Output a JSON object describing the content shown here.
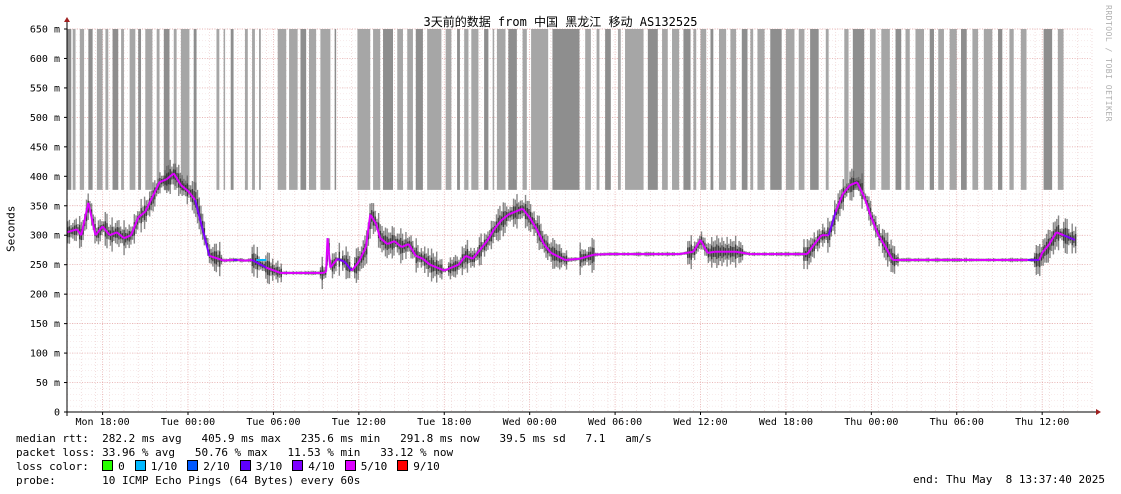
{
  "title": "3天前的数据 from 中国 黑龙江 移动 AS132525",
  "watermark": "RRDTOOL / TOBI OETIKER",
  "stats": {
    "rtt_label": "median rtt:",
    "rtt_values": "282.2 ms avg   405.9 ms max   235.6 ms min   291.8 ms now   39.5 ms sd   7.1   am/s",
    "loss_label": "packet loss:",
    "loss_values": "33.96 % avg   50.76 % max   11.53 % min   33.12 % now",
    "color_label": "loss color:",
    "probe_label": "probe:",
    "probe_value": "10 ICMP Echo Pings (64 Bytes) every 60s",
    "end": "end: Thu May  8 13:37:40 2025"
  },
  "loss_colors": [
    {
      "label": "0",
      "color": "#26ff00"
    },
    {
      "label": "1/10",
      "color": "#00b8ff"
    },
    {
      "label": "2/10",
      "color": "#0059ff"
    },
    {
      "label": "3/10",
      "color": "#5e00ff"
    },
    {
      "label": "4/10",
      "color": "#7e00ff"
    },
    {
      "label": "5/10",
      "color": "#dd00ff"
    },
    {
      "label": "9/10",
      "color": "#ff0000"
    }
  ],
  "chart_data": {
    "type": "line",
    "title": "3天前的数据 from 中国 黑龙江 移动 AS132525",
    "ylabel": "Seconds",
    "ylim": [
      0,
      0.65
    ],
    "y_ticks": [
      {
        "v": 0,
        "label": "0"
      },
      {
        "v": 0.05,
        "label": "50 m"
      },
      {
        "v": 0.1,
        "label": "100 m"
      },
      {
        "v": 0.15,
        "label": "150 m"
      },
      {
        "v": 0.2,
        "label": "200 m"
      },
      {
        "v": 0.25,
        "label": "250 m"
      },
      {
        "v": 0.3,
        "label": "300 m"
      },
      {
        "v": 0.35,
        "label": "350 m"
      },
      {
        "v": 0.4,
        "label": "400 m"
      },
      {
        "v": 0.45,
        "label": "450 m"
      },
      {
        "v": 0.5,
        "label": "500 m"
      },
      {
        "v": 0.55,
        "label": "550 m"
      },
      {
        "v": 0.6,
        "label": "600 m"
      },
      {
        "v": 0.65,
        "label": "650 m"
      }
    ],
    "xlim": [
      0,
      72
    ],
    "x_ticks": [
      {
        "v": 2.5,
        "label": "Mon 18:00"
      },
      {
        "v": 8.5,
        "label": "Tue 00:00"
      },
      {
        "v": 14.5,
        "label": "Tue 06:00"
      },
      {
        "v": 20.5,
        "label": "Tue 12:00"
      },
      {
        "v": 26.5,
        "label": "Tue 18:00"
      },
      {
        "v": 32.5,
        "label": "Wed 00:00"
      },
      {
        "v": 38.5,
        "label": "Wed 06:00"
      },
      {
        "v": 44.5,
        "label": "Wed 12:00"
      },
      {
        "v": 50.5,
        "label": "Wed 18:00"
      },
      {
        "v": 56.5,
        "label": "Thu 00:00"
      },
      {
        "v": 62.5,
        "label": "Thu 06:00"
      },
      {
        "v": 68.5,
        "label": "Thu 12:00"
      }
    ],
    "median_rtt": {
      "x": [
        0,
        0.7,
        1.0,
        1.5,
        2.0,
        2.5,
        3.0,
        3.5,
        4.0,
        4.5,
        5.0,
        5.5,
        6.0,
        6.5,
        7.0,
        7.5,
        8.0,
        8.5,
        9.0,
        10.0,
        11.0,
        11.5,
        11.7,
        12.0,
        12.5,
        13.0,
        14.0,
        15.0,
        16.0,
        17.0,
        18.0,
        18.2,
        18.3,
        18.5,
        19.0,
        19.5,
        20.0,
        20.5,
        21.0,
        21.3,
        21.7,
        22.0,
        22.5,
        23.0,
        23.5,
        24.0,
        24.5,
        25.0,
        25.5,
        26.0,
        26.5,
        27.0,
        27.5,
        28.0,
        28.5,
        29.0,
        29.5,
        30.0,
        30.5,
        31.0,
        31.5,
        32.0,
        32.5,
        33.0,
        33.5,
        34.0,
        35.0,
        36.0,
        37.0,
        38.0,
        39.0,
        40.0,
        41.0,
        42.0,
        43.0,
        44.0,
        44.5,
        45.0,
        45.5,
        46.0,
        47.0,
        48.0,
        49.0,
        50.0,
        51.0,
        52.0,
        52.5,
        53.0,
        53.5,
        54.0,
        54.5,
        55.0,
        55.5,
        56.0,
        56.5,
        57.0,
        57.5,
        58.0,
        59.0,
        60.0,
        61.0,
        62.0,
        63.0,
        64.0,
        65.0,
        66.0,
        67.0,
        67.5,
        68.0,
        68.3,
        68.5,
        69.0,
        69.5,
        70.0,
        70.5,
        70.8
      ],
      "values": [
        0.305,
        0.31,
        0.3,
        0.355,
        0.3,
        0.315,
        0.3,
        0.305,
        0.295,
        0.3,
        0.33,
        0.34,
        0.365,
        0.39,
        0.395,
        0.405,
        0.385,
        0.375,
        0.36,
        0.265,
        0.257,
        0.258,
        0.258,
        0.258,
        0.257,
        0.258,
        0.245,
        0.236,
        0.236,
        0.236,
        0.236,
        0.238,
        0.295,
        0.245,
        0.26,
        0.255,
        0.24,
        0.255,
        0.28,
        0.335,
        0.32,
        0.295,
        0.285,
        0.29,
        0.28,
        0.285,
        0.265,
        0.26,
        0.25,
        0.245,
        0.24,
        0.245,
        0.25,
        0.265,
        0.26,
        0.275,
        0.29,
        0.31,
        0.325,
        0.335,
        0.34,
        0.345,
        0.33,
        0.31,
        0.285,
        0.27,
        0.258,
        0.26,
        0.267,
        0.268,
        0.268,
        0.268,
        0.268,
        0.268,
        0.268,
        0.272,
        0.292,
        0.27,
        0.272,
        0.272,
        0.272,
        0.268,
        0.268,
        0.268,
        0.268,
        0.268,
        0.285,
        0.3,
        0.3,
        0.34,
        0.37,
        0.385,
        0.39,
        0.365,
        0.33,
        0.3,
        0.28,
        0.258,
        0.258,
        0.258,
        0.258,
        0.258,
        0.258,
        0.258,
        0.258,
        0.258,
        0.258,
        0.258,
        0.258,
        0.258,
        0.27,
        0.285,
        0.305,
        0.3,
        0.295,
        0.292
      ]
    },
    "loss_regions": [
      [
        0.0,
        0.3
      ],
      [
        0.4,
        0.6
      ],
      [
        0.9,
        1.2
      ],
      [
        1.5,
        1.8
      ],
      [
        2.1,
        2.5
      ],
      [
        2.7,
        2.9
      ],
      [
        3.2,
        3.6
      ],
      [
        3.8,
        4.0
      ],
      [
        4.4,
        4.8
      ],
      [
        5.0,
        5.2
      ],
      [
        5.5,
        6.0
      ],
      [
        6.3,
        6.5
      ],
      [
        6.8,
        7.2
      ],
      [
        7.5,
        7.7
      ],
      [
        8.0,
        8.6
      ],
      [
        8.9,
        9.1
      ],
      [
        10.5,
        10.7
      ],
      [
        11.0,
        11.1
      ],
      [
        11.5,
        11.7
      ],
      [
        12.5,
        12.7
      ],
      [
        13.0,
        13.2
      ],
      [
        13.5,
        13.6
      ],
      [
        14.8,
        15.4
      ],
      [
        15.6,
        16.2
      ],
      [
        16.4,
        16.8
      ],
      [
        17.0,
        17.5
      ],
      [
        17.8,
        18.5
      ],
      [
        18.8,
        18.9
      ],
      [
        20.4,
        21.3
      ],
      [
        21.5,
        22.0
      ],
      [
        22.2,
        22.9
      ],
      [
        23.2,
        23.6
      ],
      [
        23.9,
        24.3
      ],
      [
        24.5,
        25.0
      ],
      [
        25.3,
        26.3
      ],
      [
        26.6,
        27.0
      ],
      [
        27.4,
        27.6
      ],
      [
        27.9,
        28.2
      ],
      [
        28.4,
        28.9
      ],
      [
        29.3,
        29.6
      ],
      [
        29.9,
        30.0
      ],
      [
        30.2,
        30.8
      ],
      [
        31.0,
        31.6
      ],
      [
        32.0,
        32.3
      ],
      [
        32.6,
        33.8
      ],
      [
        34.1,
        36.0
      ],
      [
        36.4,
        36.8
      ],
      [
        37.2,
        37.4
      ],
      [
        37.8,
        38.2
      ],
      [
        38.7,
        38.9
      ],
      [
        39.2,
        40.5
      ],
      [
        40.8,
        41.5
      ],
      [
        41.8,
        42.2
      ],
      [
        42.5,
        43.0
      ],
      [
        43.3,
        43.8
      ],
      [
        44.0,
        44.2
      ],
      [
        44.5,
        44.9
      ],
      [
        45.2,
        45.4
      ],
      [
        45.8,
        46.3
      ],
      [
        46.6,
        47.0
      ],
      [
        47.4,
        47.8
      ],
      [
        48.0,
        48.2
      ],
      [
        48.5,
        49.0
      ],
      [
        49.4,
        50.2
      ],
      [
        50.5,
        51.1
      ],
      [
        51.4,
        51.8
      ],
      [
        52.2,
        52.8
      ],
      [
        53.3,
        53.5
      ],
      [
        54.6,
        54.9
      ],
      [
        55.2,
        56.0
      ],
      [
        56.4,
        56.8
      ],
      [
        57.2,
        57.8
      ],
      [
        58.2,
        58.6
      ],
      [
        58.9,
        59.2
      ],
      [
        59.6,
        60.2
      ],
      [
        60.6,
        60.9
      ],
      [
        61.2,
        61.6
      ],
      [
        62.0,
        62.5
      ],
      [
        62.8,
        63.2
      ],
      [
        63.6,
        64.0
      ],
      [
        64.4,
        65.0
      ],
      [
        65.4,
        65.7
      ],
      [
        66.2,
        66.5
      ],
      [
        67.0,
        67.4
      ],
      [
        68.6,
        69.2
      ],
      [
        69.6,
        70.0
      ]
    ]
  }
}
